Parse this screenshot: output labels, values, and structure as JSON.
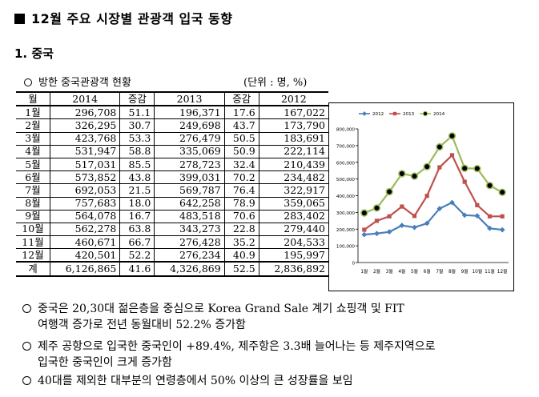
{
  "title": "12월 주요 시장별 관광객 입국 동향",
  "section": "1. 중국",
  "subtitle": "방한 중국관광객 현황",
  "unit": "(단위 : 명, %)",
  "table": {
    "headers": [
      "월",
      "2014",
      "증감",
      "2013",
      "증감",
      "2012"
    ],
    "rows": [
      [
        "1월",
        "296,708",
        "51.1",
        "196,371",
        "17.6",
        "167,022"
      ],
      [
        "2월",
        "326,295",
        "30.7",
        "249,698",
        "43.7",
        "173,790"
      ],
      [
        "3월",
        "423,768",
        "53.3",
        "276,479",
        "50.5",
        "183,691"
      ],
      [
        "4월",
        "531,947",
        "58.8",
        "335,069",
        "50.9",
        "222,114"
      ],
      [
        "5월",
        "517,031",
        "85.5",
        "278,723",
        "32.4",
        "210,439"
      ],
      [
        "6월",
        "573,852",
        "43.8",
        "399,031",
        "70.2",
        "234,482"
      ],
      [
        "7월",
        "692,053",
        "21.5",
        "569,787",
        "76.4",
        "322,917"
      ],
      [
        "8월",
        "757,683",
        "18.0",
        "642,258",
        "78.9",
        "359,065"
      ],
      [
        "9월",
        "564,078",
        "16.7",
        "483,518",
        "70.6",
        "283,402"
      ],
      [
        "10월",
        "562,278",
        "63.8",
        "343,273",
        "22.8",
        "279,440"
      ],
      [
        "11월",
        "460,671",
        "66.7",
        "276,428",
        "35.2",
        "204,533"
      ],
      [
        "12월",
        "420,501",
        "52.2",
        "276,234",
        "40.9",
        "195,997"
      ]
    ],
    "total": [
      "계",
      "6,126,865",
      "41.6",
      "4,326,869",
      "52.5",
      "2,836,892"
    ]
  },
  "chart_data": {
    "type": "line",
    "categories": [
      "1월",
      "2월",
      "3월",
      "4월",
      "5월",
      "6월",
      "7월",
      "8월",
      "9월",
      "10월",
      "11월",
      "12월"
    ],
    "series": [
      {
        "name": "2012",
        "color": "#4a7ebb",
        "marker": "diamond",
        "values": [
          167022,
          173790,
          183691,
          222114,
          210439,
          234482,
          322917,
          359065,
          283402,
          279440,
          204533,
          195997
        ]
      },
      {
        "name": "2013",
        "color": "#c0504d",
        "marker": "square",
        "values": [
          196371,
          249698,
          276479,
          335069,
          278723,
          399031,
          569787,
          642258,
          483518,
          343273,
          276428,
          276234
        ]
      },
      {
        "name": "2014",
        "color": "#9bbb59",
        "marker": "circle",
        "values": [
          296708,
          326295,
          423768,
          531947,
          517031,
          573852,
          692053,
          757683,
          564078,
          562278,
          460671,
          420501
        ]
      }
    ],
    "yticks": [
      "0",
      "100,000",
      "200,000",
      "300,000",
      "400,000",
      "500,000",
      "600,000",
      "700,000",
      "800,000"
    ],
    "ylim": [
      0,
      800000
    ],
    "legend": "top"
  },
  "bullets": [
    {
      "line1": "중국은 20,30대 젊은층을 중심으로 Korea Grand Sale 계기 쇼핑객 및 FIT",
      "line2": "여행객 증가로 전년 동월대비 52.2% 증가함"
    },
    {
      "line1": "제주 공항으로 입국한 중국인이 +89.4%, 제주항은 3.3배 늘어나는 등 제주지역으로",
      "line2": "입국한 중국인이 크게 증가함"
    },
    {
      "line1": "40대를 제외한 대부분의 연령층에서 50% 이상의 큰 성장률을 보임",
      "line2": ""
    }
  ]
}
